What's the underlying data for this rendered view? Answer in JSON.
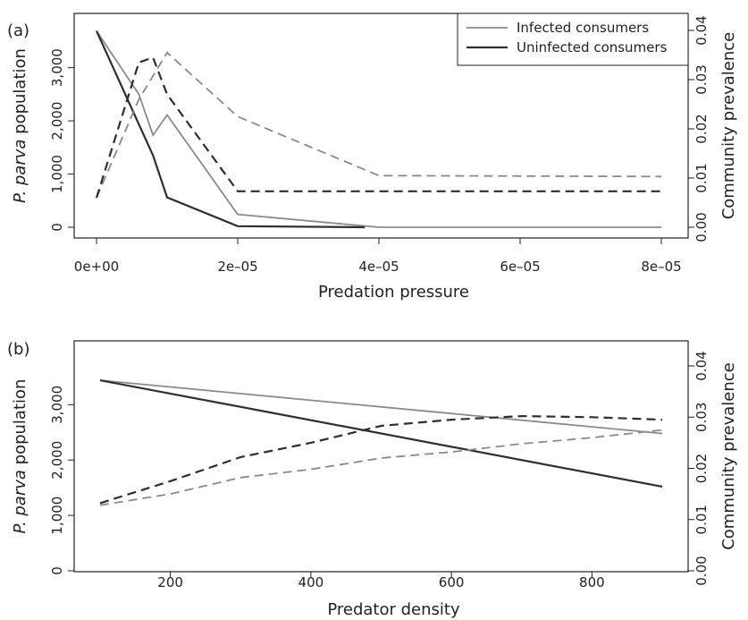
{
  "colors": {
    "infected": "#8a8a8a",
    "uninfected": "#2e2e2e",
    "axis": "#222222"
  },
  "chart_data": [
    {
      "type": "line",
      "panel_label": "(a)",
      "xlabel": "Predation pressure",
      "ylabel_prefix": "P. parva",
      "ylabel_suffix": "population",
      "y2label": "Community prevalence",
      "xlim": [
        0,
        8e-05
      ],
      "ylim": [
        0,
        3700
      ],
      "y2lim": [
        0,
        0.04
      ],
      "x_ticks": [
        0,
        2e-05,
        4e-05,
        6e-05,
        8e-05
      ],
      "x_tick_labels": [
        "0e+00",
        "2e–05",
        "4e–05",
        "6e–05",
        "8e–05"
      ],
      "y_ticks": [
        0,
        1000,
        2000,
        3000
      ],
      "y_tick_labels": [
        "0",
        "1,000",
        "2,000",
        "3,000"
      ],
      "y2_ticks": [
        0,
        0.01,
        0.02,
        0.03,
        0.04
      ],
      "y2_tick_labels": [
        "0.00",
        "0.01",
        "0.02",
        "0.03",
        "0.04"
      ],
      "legend": {
        "position": "top-right",
        "entries": [
          {
            "label": "Infected consumers",
            "series": "infected"
          },
          {
            "label": "Uninfected consumers",
            "series": "uninfected"
          }
        ]
      },
      "series": [
        {
          "name": "Infected consumers",
          "style": "infected",
          "axis": "left",
          "dash": false,
          "x": [
            0,
            6e-06,
            8e-06,
            1e-05,
            2e-05,
            4e-05,
            8e-05
          ],
          "y": [
            3690,
            2500,
            1730,
            2110,
            240,
            0,
            0
          ]
        },
        {
          "name": "Uninfected consumers",
          "style": "uninfected",
          "axis": "left",
          "dash": false,
          "x": [
            0,
            8e-06,
            1e-05,
            2e-05,
            3.8e-05
          ],
          "y": [
            3690,
            1350,
            560,
            20,
            0
          ]
        },
        {
          "name": "Infected consumers",
          "style": "infected",
          "axis": "right",
          "dash": true,
          "x": [
            0,
            6e-06,
            1e-05,
            2e-05,
            4e-05,
            8e-05
          ],
          "y": [
            0.006,
            0.026,
            0.0355,
            0.0225,
            0.0105,
            0.0103
          ]
        },
        {
          "name": "Uninfected consumers",
          "style": "uninfected",
          "axis": "right",
          "dash": true,
          "x": [
            0,
            6e-06,
            8e-06,
            1e-05,
            2e-05,
            8e-05
          ],
          "y": [
            0.006,
            0.0335,
            0.0345,
            0.027,
            0.0073,
            0.0073
          ]
        }
      ]
    },
    {
      "type": "line",
      "panel_label": "(b)",
      "xlabel": "Predator density",
      "ylabel_prefix": "P. parva",
      "ylabel_suffix": "population",
      "y2label": "Community prevalence",
      "xlim": [
        100,
        900
      ],
      "ylim": [
        0,
        3700
      ],
      "y2lim": [
        0,
        0.04
      ],
      "x_ticks": [
        200,
        400,
        600,
        800
      ],
      "x_tick_labels": [
        "200",
        "400",
        "600",
        "800"
      ],
      "y_ticks": [
        0,
        1000,
        2000,
        3000
      ],
      "y_tick_labels": [
        "0",
        "1,000",
        "2,000",
        "3,000"
      ],
      "y2_ticks": [
        0,
        0.01,
        0.02,
        0.03,
        0.04
      ],
      "y2_tick_labels": [
        "0.00",
        "0.01",
        "0.02",
        "0.03",
        "0.04"
      ],
      "series": [
        {
          "name": "Infected consumers",
          "style": "infected",
          "axis": "left",
          "dash": false,
          "x": [
            100,
            900
          ],
          "y": [
            3440,
            2480
          ]
        },
        {
          "name": "Uninfected consumers",
          "style": "uninfected",
          "axis": "left",
          "dash": false,
          "x": [
            100,
            900
          ],
          "y": [
            3440,
            1520
          ]
        },
        {
          "name": "Infected consumers",
          "style": "infected",
          "axis": "right",
          "dash": true,
          "x": [
            100,
            200,
            300,
            400,
            500,
            600,
            700,
            800,
            900
          ],
          "y": [
            0.0128,
            0.015,
            0.0182,
            0.0198,
            0.022,
            0.0232,
            0.0248,
            0.026,
            0.0275
          ]
        },
        {
          "name": "Uninfected consumers",
          "style": "uninfected",
          "axis": "right",
          "dash": true,
          "x": [
            100,
            200,
            300,
            400,
            500,
            600,
            700,
            800,
            900
          ],
          "y": [
            0.0132,
            0.0175,
            0.0222,
            0.025,
            0.0283,
            0.0295,
            0.0302,
            0.03,
            0.0295
          ]
        }
      ]
    }
  ]
}
